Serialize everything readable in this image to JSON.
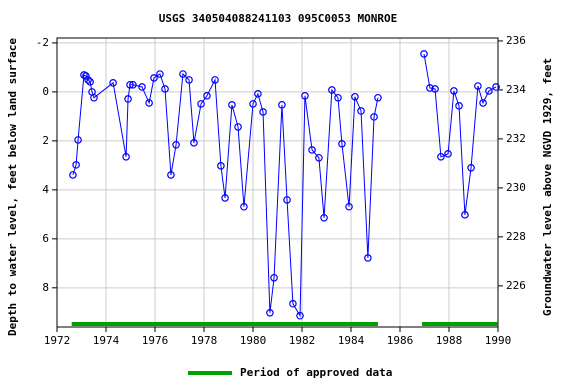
{
  "chart_data": {
    "type": "line",
    "title": "USGS 340504088241103 095C0053  MONROE",
    "y_label": "Depth to water level, feet below land surface",
    "y2_label": "Groundwater level above NGVD 1929, feet",
    "xlim": [
      1972,
      1990
    ],
    "xticks": [
      1972,
      1974,
      1976,
      1978,
      1980,
      1982,
      1984,
      1986,
      1988,
      1990
    ],
    "ylim": [
      -2.2,
      9.6
    ],
    "y_inverted": true,
    "yticks": [
      -2,
      0,
      2,
      4,
      6,
      8
    ],
    "y2lim": [
      224.32,
      236.12
    ],
    "y2ticks": [
      226,
      228,
      230,
      232,
      234,
      236
    ],
    "grid": true,
    "series": [
      {
        "name": "Depth to water level",
        "color": "#0000ff",
        "x": [
          1972.65,
          1972.78,
          1972.86,
          1973.1,
          1973.18,
          1973.27,
          1973.35,
          1973.43,
          1973.51,
          1974.29,
          1974.82,
          1974.9,
          1974.98,
          1975.1,
          1975.47,
          1975.76,
          1975.96,
          1976.2,
          1976.41,
          1976.65,
          1976.86,
          1977.14,
          1977.39,
          1977.59,
          1977.88,
          1978.12,
          1978.45,
          1978.69,
          1978.86,
          1979.14,
          1979.39,
          1979.63,
          1980.0,
          1980.2,
          1980.41,
          1980.69,
          1980.86,
          1981.18,
          1981.39,
          1981.63,
          1981.92,
          1982.12,
          1982.41,
          1982.69,
          1982.9,
          1983.22,
          1983.47,
          1983.63,
          1983.92,
          1984.16,
          1984.41,
          1984.69,
          1984.94,
          1985.1,
          null,
          1986.98,
          1987.22,
          1987.43,
          1987.67,
          1987.96,
          1988.2,
          1988.41,
          1988.65,
          1988.9,
          1989.18,
          1989.39,
          1989.63,
          1989.92
        ],
        "values": [
          3.39,
          2.98,
          1.96,
          -0.69,
          -0.65,
          -0.49,
          -0.41,
          0,
          0.24,
          -0.37,
          2.65,
          0.29,
          -0.29,
          -0.29,
          -0.2,
          0.45,
          -0.57,
          -0.73,
          -0.12,
          3.39,
          2.16,
          -0.73,
          -0.49,
          2.08,
          0.49,
          0.16,
          -0.49,
          3.02,
          4.33,
          0.53,
          1.43,
          4.69,
          0.49,
          0.08,
          0.82,
          9.02,
          7.59,
          0.53,
          4.41,
          8.65,
          9.14,
          0.16,
          2.37,
          2.69,
          5.14,
          -0.08,
          0.24,
          2.12,
          4.69,
          0.2,
          0.78,
          6.78,
          1.02,
          0.24,
          null,
          -1.55,
          -0.16,
          -0.12,
          2.65,
          2.53,
          -0.04,
          0.57,
          5.02,
          3.1,
          -0.24,
          0.45,
          -0.04,
          -0.2
        ]
      }
    ],
    "approved": {
      "name": "Period of approved data",
      "color": "#00a000",
      "periods": [
        [
          1972.6,
          1985.1
        ],
        [
          1986.9,
          1990
        ]
      ]
    }
  }
}
